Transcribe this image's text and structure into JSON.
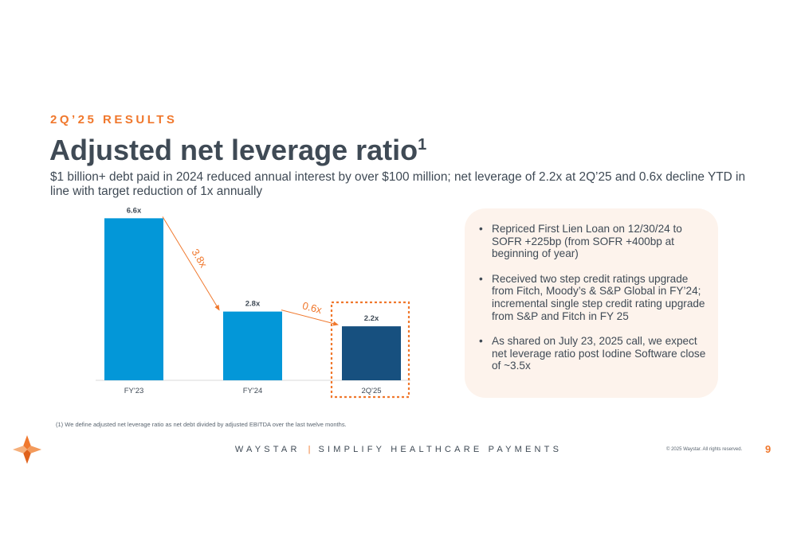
{
  "header": {
    "eyebrow": "2Q’25 RESULTS",
    "title": "Adjusted net leverage ratio",
    "title_footnote_marker": "1",
    "subtitle": "$1 billion+ debt paid in 2024 reduced annual interest by over $100 million; net leverage of 2.2x at 2Q’25 and 0.6x decline YTD in line with target reduction of 1x annually"
  },
  "chart_data": {
    "type": "bar",
    "categories": [
      "FY'23",
      "FY'24",
      "2Q'25"
    ],
    "values": [
      6.6,
      2.8,
      2.2
    ],
    "value_labels": [
      "6.6x",
      "2.8x",
      "2.2x"
    ],
    "ylim": [
      0,
      7
    ],
    "grid": false,
    "colors": [
      "#0397d8",
      "#0397d8",
      "#17507f"
    ],
    "highlight_category": "2Q'25",
    "annotations": [
      {
        "from": "FY'23",
        "to": "FY'24",
        "label": "3.8x"
      },
      {
        "from": "FY'24",
        "to": "2Q'25",
        "label": "0.6x"
      }
    ]
  },
  "panel": {
    "bullets": [
      "Repriced First Lien Loan on 12/30/24 to SOFR +225bp (from SOFR +400bp at beginning of year)",
      "Received two step credit ratings upgrade from Fitch, Moody’s & S&P Global in FY’24; incremental single step credit rating upgrade from S&P and Fitch in FY 25",
      "As shared on July 23, 2025 call, we expect net leverage ratio post Iodine Software close of ~3.5x"
    ]
  },
  "footer": {
    "footnote": "(1)   We define adjusted net leverage ratio as net debt divided by adjusted EBITDA over the last twelve months.",
    "brand": "WAYSTAR",
    "separator": "|",
    "tagline": "SIMPLIFY HEALTHCARE PAYMENTS",
    "copyright": "© 2025 Waystar. All rights reserved.",
    "page_number": "9",
    "logo_icon": "waystar-star-icon"
  },
  "accent_color": "#f0782d"
}
